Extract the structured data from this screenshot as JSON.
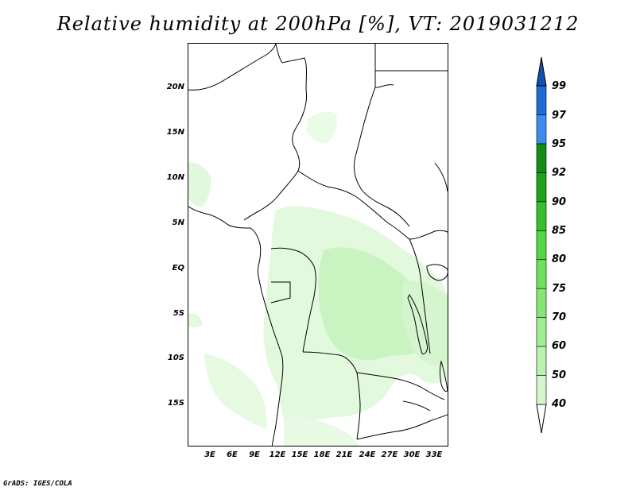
{
  "title": "Relative humidity at 200hPa [%], VT: 2019031212",
  "credit": "GrADS: IGES/COLA",
  "y_axis_labels": [
    "20N",
    "15N",
    "10N",
    "5N",
    "EQ",
    "5S",
    "10S",
    "15S"
  ],
  "x_axis_labels": [
    "3E",
    "6E",
    "9E",
    "12E",
    "15E",
    "18E",
    "21E",
    "24E",
    "27E",
    "30E",
    "33E"
  ],
  "colorbar": {
    "labels": [
      "40",
      "50",
      "60",
      "70",
      "75",
      "80",
      "85",
      "90",
      "92",
      "95",
      "97",
      "99"
    ],
    "colors": [
      "#eefbec",
      "#d3f6cd",
      "#b9f1ae",
      "#a0ec90",
      "#87e775",
      "#6de15b",
      "#51d743",
      "#36c02d",
      "#1fa31d",
      "#128c12",
      "#3c8cf0",
      "#1f6cd6",
      "#1450b4"
    ]
  },
  "humidity_color_light": "#dff8da",
  "humidity_color_mid": "#c6f2be"
}
